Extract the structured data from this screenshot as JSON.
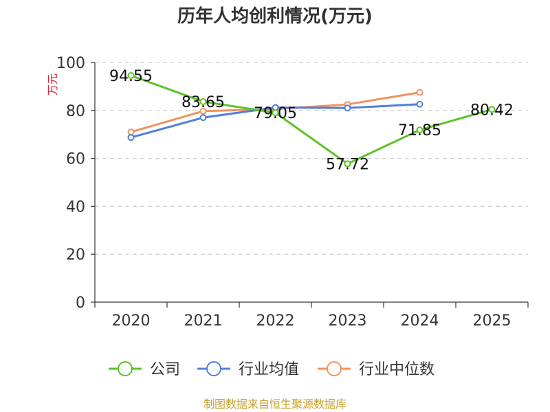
{
  "chart_data": {
    "type": "line",
    "title": "历年人均创利情况(万元)",
    "ylabel": "万元",
    "xlabel": "",
    "categories": [
      "2020",
      "2021",
      "2022",
      "2023",
      "2024",
      "2025"
    ],
    "ylim": [
      0,
      100
    ],
    "yticks": [
      0,
      20,
      40,
      60,
      80,
      100
    ],
    "grid": true,
    "legend_position": "bottom",
    "series": [
      {
        "name": "公司",
        "color": "#5bc423",
        "values": [
          94.55,
          83.65,
          79.05,
          57.72,
          71.85,
          80.42
        ],
        "labels": [
          "94.55",
          "83.65",
          "79.05",
          "57.72",
          "71.85",
          "80.42"
        ]
      },
      {
        "name": "行业均值",
        "color": "#4f7fdc",
        "values": [
          68.7,
          77.0,
          81.2,
          81.0,
          82.6,
          null
        ]
      },
      {
        "name": "行业中位数",
        "color": "#f4915e",
        "values": [
          71.0,
          79.7,
          80.6,
          82.5,
          87.5,
          null
        ]
      }
    ]
  },
  "source": "制图数据来自恒生聚源数据库"
}
